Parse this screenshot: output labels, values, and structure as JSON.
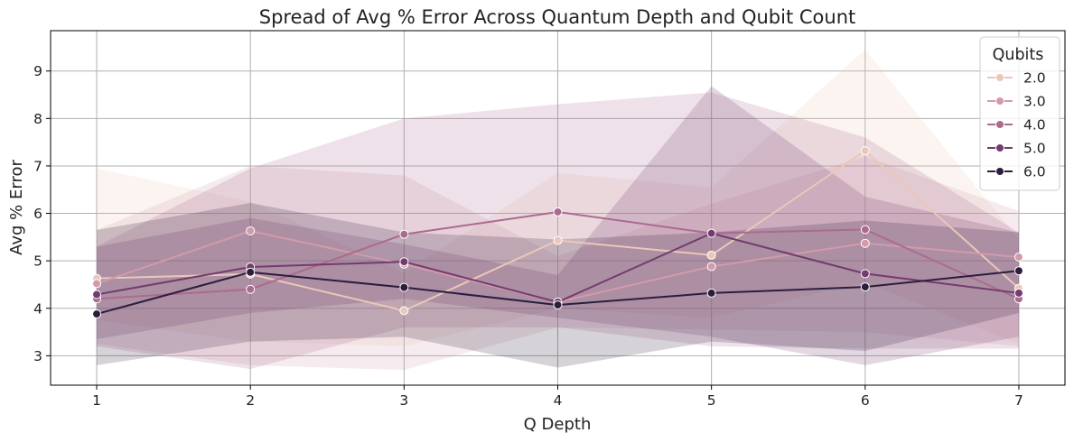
{
  "chart_data": {
    "type": "line",
    "title": "Spread of Avg % Error Across Quantum Depth and Qubit Count",
    "xlabel": "Q Depth",
    "ylabel": "Avg % Error",
    "x": [
      1,
      2,
      3,
      4,
      5,
      6,
      7
    ],
    "xlim": [
      0.7,
      7.3
    ],
    "ylim": [
      2.38,
      9.85
    ],
    "x_ticks": [
      "1",
      "2",
      "3",
      "4",
      "5",
      "6",
      "7"
    ],
    "y_ticks": [
      "3",
      "4",
      "5",
      "6",
      "7",
      "8",
      "9"
    ],
    "grid": true,
    "legend": {
      "title": "Qubits",
      "placement": "top-right"
    },
    "series": [
      {
        "name": "2.0",
        "color": "#ebc7b9",
        "values": [
          4.63,
          4.72,
          3.95,
          5.43,
          5.12,
          7.32,
          4.42
        ],
        "upper": [
          6.95,
          6.25,
          4.75,
          6.85,
          6.55,
          9.45,
          5.45
        ],
        "lower": [
          3.75,
          3.3,
          3.2,
          4.0,
          3.8,
          4.55,
          3.25
        ]
      },
      {
        "name": "3.0",
        "color": "#d39aab",
        "values": [
          4.52,
          5.63,
          4.93,
          4.13,
          4.88,
          5.37,
          5.08
        ],
        "upper": [
          5.65,
          7.0,
          6.8,
          5.1,
          6.2,
          7.2,
          6.05
        ],
        "lower": [
          3.25,
          2.8,
          2.7,
          3.6,
          3.55,
          3.5,
          3.2
        ]
      },
      {
        "name": "4.0",
        "color": "#ac6a90",
        "values": [
          4.2,
          4.4,
          5.56,
          6.03,
          5.58,
          5.66,
          4.2
        ],
        "upper": [
          5.3,
          6.95,
          8.0,
          8.3,
          8.55,
          7.6,
          5.6
        ],
        "lower": [
          3.2,
          2.72,
          3.6,
          3.6,
          3.2,
          3.15,
          3.15
        ]
      },
      {
        "name": "5.0",
        "color": "#733b6f",
        "values": [
          4.29,
          4.87,
          4.98,
          4.13,
          5.58,
          4.73,
          4.32
        ],
        "upper": [
          5.3,
          5.9,
          5.35,
          4.7,
          8.68,
          6.35,
          5.6
        ],
        "lower": [
          3.35,
          3.9,
          4.2,
          3.8,
          3.4,
          2.8,
          3.4
        ]
      },
      {
        "name": "6.0",
        "color": "#2c1d3e",
        "values": [
          3.88,
          4.76,
          4.44,
          4.07,
          4.32,
          4.45,
          4.79
        ],
        "upper": [
          5.65,
          6.22,
          5.6,
          5.45,
          5.6,
          5.85,
          5.6
        ],
        "lower": [
          2.8,
          3.3,
          3.4,
          2.75,
          3.3,
          3.1,
          3.9
        ]
      }
    ]
  }
}
